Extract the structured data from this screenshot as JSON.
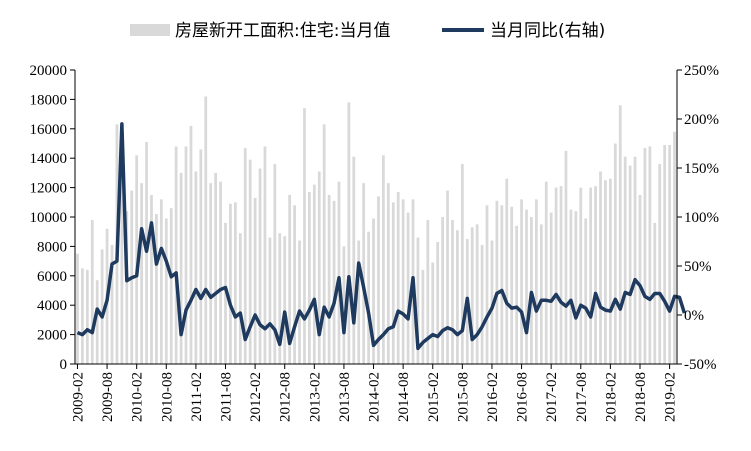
{
  "chart_data": {
    "type": "bar+line",
    "legend": {
      "position": "top",
      "items": [
        {
          "label": "房屋新开工面积:住宅:当月值",
          "color": "#d9d9d9",
          "kind": "bar"
        },
        {
          "label": "当月同比(右轴)",
          "color": "#1f3a5f",
          "kind": "line"
        }
      ]
    },
    "y_left": {
      "min": 0,
      "max": 20000,
      "ticks": [
        "0",
        "2000",
        "4000",
        "6000",
        "8000",
        "10000",
        "12000",
        "14000",
        "16000",
        "18000",
        "20000"
      ]
    },
    "y_right": {
      "min": -50,
      "max": 250,
      "ticks": [
        "-50%",
        "0%",
        "50%",
        "100%",
        "150%",
        "200%",
        "250%"
      ]
    },
    "x_tick_labels": [
      "2009-02",
      "2009-08",
      "2010-02",
      "2010-08",
      "2011-02",
      "2011-08",
      "2012-02",
      "2012-08",
      "2013-02",
      "2013-08",
      "2014-02",
      "2014-08",
      "2015-02",
      "2015-08",
      "2016-02",
      "2016-08",
      "2017-02",
      "2017-08",
      "2018-02",
      "2018-08",
      "2019-02"
    ],
    "series": [
      {
        "name": "房屋新开工面积:住宅:当月值",
        "kind": "bar",
        "axis": "left",
        "values": [
          7500,
          6500,
          6400,
          9800,
          5700,
          7800,
          9200,
          8100,
          16300,
          14000,
          10400,
          11800,
          14200,
          12300,
          15100,
          11500,
          10200,
          11200,
          9900,
          10600,
          14800,
          13000,
          14800,
          16200,
          13100,
          14600,
          18200,
          12300,
          13000,
          12400,
          9600,
          10900,
          11000,
          8900,
          14700,
          13900,
          11300,
          13300,
          14800,
          8600,
          13600,
          8900,
          8700,
          11500,
          10800,
          8400,
          17400,
          11700,
          12200,
          13100,
          16300,
          11500,
          11100,
          12400,
          8000,
          17800,
          14100,
          8400,
          12300,
          9000,
          9900,
          11400,
          14200,
          12300,
          11000,
          11700,
          11200,
          10300,
          11200,
          8600,
          6400,
          9800,
          6900,
          8300,
          10000,
          11800,
          9800,
          9100,
          13600,
          8500,
          9300,
          9500,
          8100,
          10800,
          8400,
          11100,
          10800,
          12600,
          10700,
          9400,
          11200,
          10500,
          10000,
          11200,
          9500,
          12400,
          10300,
          12000,
          12100,
          14500,
          10500,
          10400,
          12000,
          9900,
          12000,
          12100,
          13100,
          12500,
          12600,
          15000,
          17600,
          14100,
          13500,
          14100,
          11500,
          14700,
          14800,
          9600,
          13600,
          14900,
          14900,
          15800
        ]
      },
      {
        "name": "当月同比(右轴)",
        "kind": "line",
        "axis": "right",
        "values": [
          -18,
          -20,
          -15,
          -18,
          6,
          -2,
          15,
          52,
          55,
          195,
          35,
          38,
          40,
          88,
          65,
          94,
          52,
          68,
          55,
          39,
          43,
          -20,
          5,
          15,
          26,
          17,
          26,
          18,
          22,
          26,
          28,
          10,
          -2,
          2,
          -25,
          -12,
          0,
          -10,
          -14,
          -9,
          -15,
          -30,
          3,
          -29,
          -12,
          4,
          -4,
          5,
          16,
          -20,
          8,
          -2,
          12,
          38,
          -18,
          39,
          -8,
          53,
          28,
          2,
          -31,
          -25,
          -20,
          -14,
          -12,
          4,
          1,
          -4,
          38,
          -34,
          -28,
          -24,
          -20,
          -22,
          -16,
          -13,
          -15,
          -20,
          -16,
          17,
          -25,
          -20,
          -12,
          -2,
          7,
          22,
          25,
          12,
          7,
          8,
          3,
          -18,
          23,
          4,
          15,
          15,
          14,
          21,
          13,
          9,
          15,
          -3,
          10,
          7,
          -2,
          22,
          8,
          5,
          4,
          16,
          6,
          23,
          21,
          36,
          30,
          19,
          16,
          22,
          22,
          14,
          4,
          19,
          18,
          2
        ]
      }
    ]
  }
}
